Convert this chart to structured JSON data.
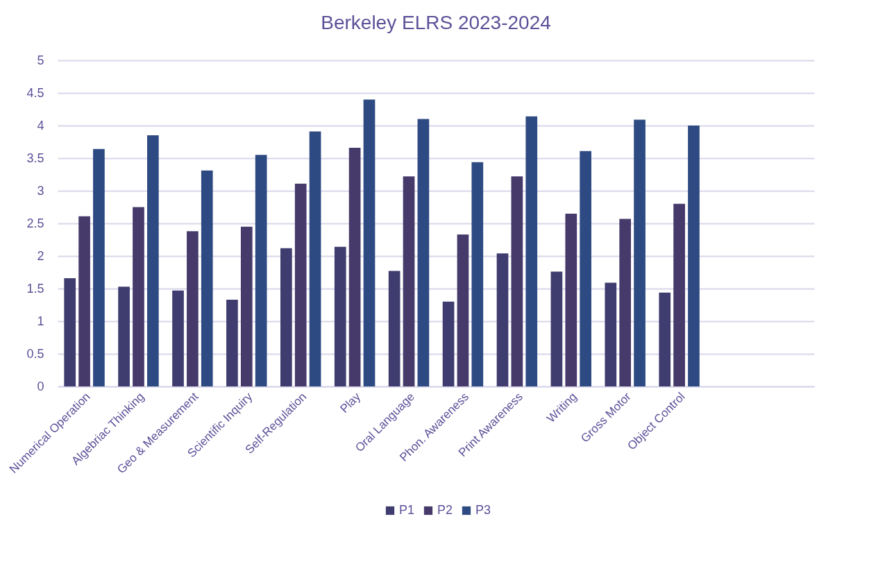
{
  "chart_data": {
    "type": "bar",
    "title": "Berkeley  ELRS 2023-2024",
    "categories": [
      "Numerical Operation",
      "Algebriac Thinking",
      "Geo & Measurement",
      "Scientific Inquiry",
      "Self-Regulation",
      "Play",
      "Oral Language",
      "Phon. Awareness",
      "Print Awareness",
      "Writing",
      "Gross Motor",
      "Object Control",
      null,
      null
    ],
    "series": [
      {
        "name": "P1",
        "color": "#3f3c6f",
        "values": [
          1.66,
          1.53,
          1.47,
          1.33,
          2.12,
          2.14,
          1.77,
          1.3,
          2.04,
          1.76,
          1.59,
          1.44,
          null,
          null
        ]
      },
      {
        "name": "P2",
        "color": "#463a6b",
        "values": [
          2.61,
          2.75,
          2.38,
          2.45,
          3.11,
          3.66,
          3.22,
          2.33,
          3.22,
          2.65,
          2.57,
          2.8,
          null,
          null
        ]
      },
      {
        "name": "P3",
        "color": "#2e4a82",
        "values": [
          3.64,
          3.85,
          3.31,
          3.55,
          3.91,
          4.4,
          4.1,
          3.44,
          4.14,
          3.61,
          4.09,
          4.0,
          null,
          null
        ]
      }
    ],
    "ylim": [
      0,
      5
    ],
    "yticks": [
      0,
      0.5,
      1,
      1.5,
      2,
      2.5,
      3,
      3.5,
      4,
      4.5,
      5
    ],
    "grid": "y",
    "legend": "bottom"
  }
}
